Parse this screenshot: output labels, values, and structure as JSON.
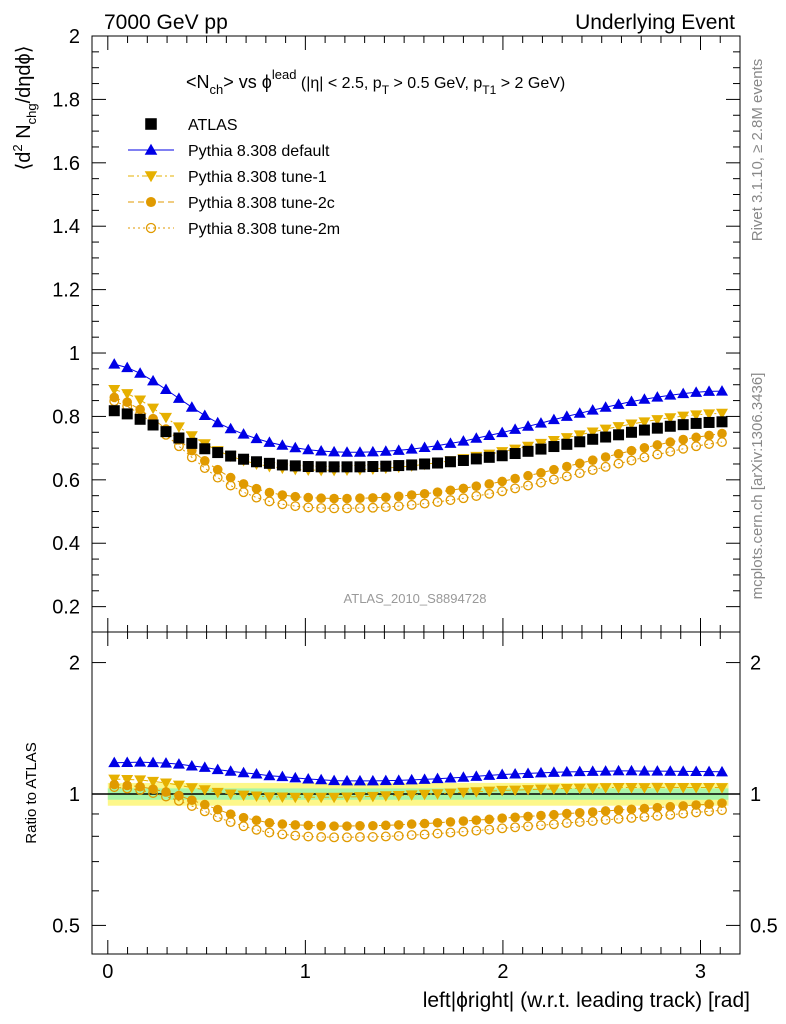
{
  "header": {
    "left": "7000 GeV pp",
    "right": "Underlying Event"
  },
  "side_labels": {
    "rivet": "Rivet 3.1.10, ≥ 2.8M events",
    "mcplots": "mcplots.cern.ch [arXiv:1306.3436]"
  },
  "analysis_tag": "ATLAS_2010_S8894728",
  "chart_data": [
    {
      "type": "scatter",
      "panel": "main",
      "title_parts": {
        "nch": "<N",
        "nch_sub": "ch",
        "mid": "> vs ϕ",
        "lead_sup": "lead",
        "cuts1": " (|η| < 2.5, p",
        "pt_sub": "T",
        "cuts2": " > 0.5 GeV, p",
        "pt1_sub": "T1",
        "cuts3": " > 2 GeV)"
      },
      "ylabel_parts": {
        "a": "⟨d",
        "sup": "2",
        "b": " N",
        "sub": "chg",
        "c": "/dηdϕ⟩"
      },
      "xlim": [
        -0.08,
        3.2
      ],
      "ylim": [
        0.12,
        2.0
      ],
      "yticks": [
        "0.2",
        "0.4",
        "0.6",
        "0.8",
        "1",
        "1.2",
        "1.4",
        "1.6",
        "1.8",
        "2"
      ],
      "legend_position": "top-left",
      "x": [
        0.0327,
        0.0982,
        0.1636,
        0.2291,
        0.2945,
        0.36,
        0.4254,
        0.4909,
        0.5563,
        0.6218,
        0.6872,
        0.7527,
        0.8181,
        0.8836,
        0.949,
        1.0145,
        1.0799,
        1.1454,
        1.2108,
        1.2763,
        1.3417,
        1.4072,
        1.4726,
        1.5381,
        1.6035,
        1.669,
        1.7344,
        1.7999,
        1.8653,
        1.9308,
        1.9962,
        2.0617,
        2.1271,
        2.1926,
        2.258,
        2.3235,
        2.3889,
        2.4544,
        2.5198,
        2.5853,
        2.6507,
        2.7162,
        2.7816,
        2.8471,
        2.9125,
        2.978,
        3.0434,
        3.1089
      ],
      "series": [
        {
          "name": "ATLAS",
          "color": "#000000",
          "marker": "square-filled",
          "line": "none",
          "values": [
            0.818,
            0.808,
            0.791,
            0.773,
            0.752,
            0.732,
            0.715,
            0.698,
            0.686,
            0.675,
            0.665,
            0.657,
            0.652,
            0.647,
            0.644,
            0.642,
            0.641,
            0.641,
            0.641,
            0.641,
            0.642,
            0.643,
            0.645,
            0.647,
            0.65,
            0.653,
            0.657,
            0.661,
            0.666,
            0.671,
            0.676,
            0.683,
            0.69,
            0.697,
            0.705,
            0.712,
            0.72,
            0.728,
            0.735,
            0.742,
            0.75,
            0.757,
            0.763,
            0.769,
            0.774,
            0.778,
            0.781,
            0.783
          ]
        },
        {
          "name": "Pythia 8.308 default",
          "color": "#0000e6",
          "marker": "triangle-up-filled",
          "line": "solid",
          "values": [
            0.965,
            0.954,
            0.936,
            0.912,
            0.885,
            0.857,
            0.829,
            0.803,
            0.78,
            0.761,
            0.744,
            0.73,
            0.718,
            0.709,
            0.701,
            0.695,
            0.691,
            0.688,
            0.687,
            0.687,
            0.688,
            0.69,
            0.693,
            0.697,
            0.702,
            0.708,
            0.715,
            0.722,
            0.731,
            0.74,
            0.749,
            0.759,
            0.769,
            0.779,
            0.79,
            0.8,
            0.81,
            0.82,
            0.829,
            0.838,
            0.847,
            0.854,
            0.861,
            0.867,
            0.872,
            0.876,
            0.879,
            0.88
          ]
        },
        {
          "name": "Pythia 8.308 tune-1",
          "color": "#e6b000",
          "marker": "triangle-down-filled",
          "line": "dashdot",
          "values": [
            0.885,
            0.872,
            0.852,
            0.826,
            0.797,
            0.767,
            0.739,
            0.714,
            0.692,
            0.675,
            0.661,
            0.65,
            0.642,
            0.637,
            0.633,
            0.631,
            0.63,
            0.63,
            0.631,
            0.632,
            0.634,
            0.637,
            0.64,
            0.644,
            0.649,
            0.654,
            0.66,
            0.667,
            0.674,
            0.681,
            0.689,
            0.697,
            0.706,
            0.715,
            0.724,
            0.733,
            0.742,
            0.751,
            0.76,
            0.768,
            0.776,
            0.783,
            0.79,
            0.796,
            0.801,
            0.805,
            0.808,
            0.81
          ]
        },
        {
          "name": "Pythia 8.308 tune-2c",
          "color": "#e09a00",
          "marker": "circle-filled",
          "line": "dashed",
          "values": [
            0.86,
            0.845,
            0.822,
            0.793,
            0.76,
            0.726,
            0.692,
            0.66,
            0.632,
            0.607,
            0.587,
            0.572,
            0.56,
            0.552,
            0.547,
            0.544,
            0.542,
            0.541,
            0.541,
            0.542,
            0.543,
            0.545,
            0.548,
            0.552,
            0.556,
            0.561,
            0.567,
            0.573,
            0.58,
            0.587,
            0.595,
            0.604,
            0.613,
            0.622,
            0.632,
            0.642,
            0.652,
            0.662,
            0.672,
            0.682,
            0.692,
            0.701,
            0.71,
            0.719,
            0.727,
            0.734,
            0.74,
            0.746
          ]
        },
        {
          "name": "Pythia 8.308 tune-2m",
          "color": "#e09a00",
          "marker": "circle-open",
          "line": "dotted",
          "values": [
            0.848,
            0.832,
            0.808,
            0.777,
            0.742,
            0.706,
            0.671,
            0.637,
            0.607,
            0.582,
            0.561,
            0.544,
            0.532,
            0.523,
            0.517,
            0.513,
            0.511,
            0.51,
            0.51,
            0.511,
            0.512,
            0.514,
            0.517,
            0.521,
            0.525,
            0.53,
            0.536,
            0.542,
            0.549,
            0.556,
            0.564,
            0.573,
            0.582,
            0.591,
            0.601,
            0.611,
            0.621,
            0.631,
            0.641,
            0.651,
            0.661,
            0.671,
            0.68,
            0.689,
            0.698,
            0.706,
            0.713,
            0.719
          ]
        }
      ]
    },
    {
      "type": "scatter",
      "panel": "ratio",
      "ylabel": "Ratio to ATLAS",
      "xlabel": "left|ϕright| (w.r.t. leading track) [rad]",
      "xlim": [
        -0.08,
        3.2
      ],
      "ylim": [
        0.43,
        2.35
      ],
      "log_y": true,
      "xticks": [
        "0",
        "1",
        "2",
        "3"
      ],
      "yticks": [
        "0.5",
        "1",
        "2"
      ],
      "band_colors": {
        "outer": "#fdf78a",
        "inner": "#a8f5a8"
      },
      "band_half_width": {
        "outer": 0.06,
        "inner": 0.03
      },
      "reference_value": 1,
      "series_note": "ratio = series / ATLAS, same x as main panel"
    }
  ]
}
